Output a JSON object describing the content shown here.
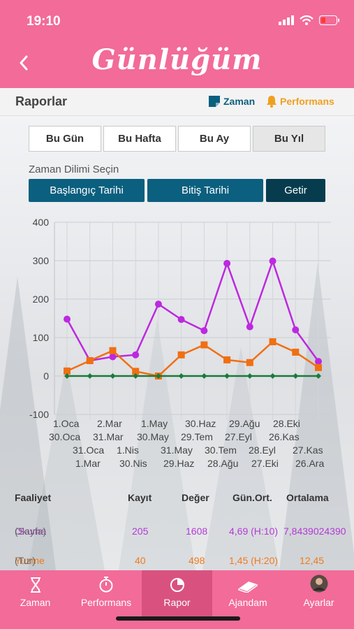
{
  "status_bar": {
    "time": "19:10"
  },
  "header": {
    "title": "Günlüğüm",
    "back_icon": "chevron-left-icon"
  },
  "section": {
    "title": "Raporlar",
    "legend_zaman": "Zaman",
    "legend_performans": "Performans"
  },
  "period_tabs": [
    {
      "label": "Bu Gün",
      "active": false
    },
    {
      "label": "Bu Hafta",
      "active": false
    },
    {
      "label": "Bu Ay",
      "active": false
    },
    {
      "label": "Bu Yıl",
      "active": true
    }
  ],
  "range": {
    "label": "Zaman Dilimi Seçin",
    "start_button": "Başlangıç Tarihi",
    "end_button": "Bitiş Tarihi",
    "fetch_button": "Getir"
  },
  "chart_data": {
    "type": "line",
    "ylim": [
      -100,
      400
    ],
    "y_ticks": [
      400,
      300,
      200,
      100,
      0,
      -100
    ],
    "x_label_rows": [
      [
        "1.Oca",
        "2.Mar",
        "1.May",
        "30.Haz",
        "29.Ağu",
        "28.Eki"
      ],
      [
        "30.Oca",
        "31.Mar",
        "30.May",
        "29.Tem",
        "27.Eyl",
        "26.Kas"
      ],
      [
        "31.Oca",
        "1.Nis",
        "31.May",
        "30.Tem",
        "28.Eyl",
        "27.Kas"
      ],
      [
        "1.Mar",
        "30.Nis",
        "29.Haz",
        "28.Ağu",
        "27.Eki",
        "26.Ara"
      ]
    ],
    "series": [
      {
        "color": "#bd28e0",
        "marker": "circle",
        "values": [
          148,
          40,
          50,
          55,
          187,
          147,
          118,
          293,
          128,
          299,
          120,
          38
        ]
      },
      {
        "color": "#f06f12",
        "marker": "square",
        "values": [
          13,
          40,
          66,
          12,
          0,
          55,
          81,
          42,
          35,
          89,
          62,
          22
        ]
      },
      {
        "color": "#1c7a3a",
        "marker": "diamond",
        "values": [
          0,
          0,
          0,
          0,
          0,
          0,
          0,
          0,
          0,
          0,
          0,
          0
        ]
      }
    ]
  },
  "stats": {
    "headers": {
      "activity": "Faaliyet",
      "count": "Kayıt",
      "value": "Değer",
      "daily_avg": "Gün.Ort.",
      "average": "Ortalama"
    },
    "rows": [
      {
        "name": "Okuma",
        "unit": "(Sayfa)",
        "count": "205",
        "value": "1608",
        "daily_avg": "4,69 (H:10)",
        "average": "7,8439024390",
        "color": "#b43ad6"
      },
      {
        "name": "Yuzme",
        "unit": "(Tur)",
        "count": "40",
        "value": "498",
        "daily_avg": "1,45 (H:20)",
        "average": "12,45",
        "color": "#ef7a1c"
      }
    ]
  },
  "tab_bar": [
    {
      "label": "Zaman",
      "icon": "hourglass-icon",
      "active": false
    },
    {
      "label": "Performans",
      "icon": "stopwatch-icon",
      "active": false
    },
    {
      "label": "Rapor",
      "icon": "pie-chart-icon",
      "active": true
    },
    {
      "label": "Ajandam",
      "icon": "book-icon",
      "active": false
    },
    {
      "label": "Ayarlar",
      "icon": "avatar-icon",
      "active": false
    }
  ]
}
